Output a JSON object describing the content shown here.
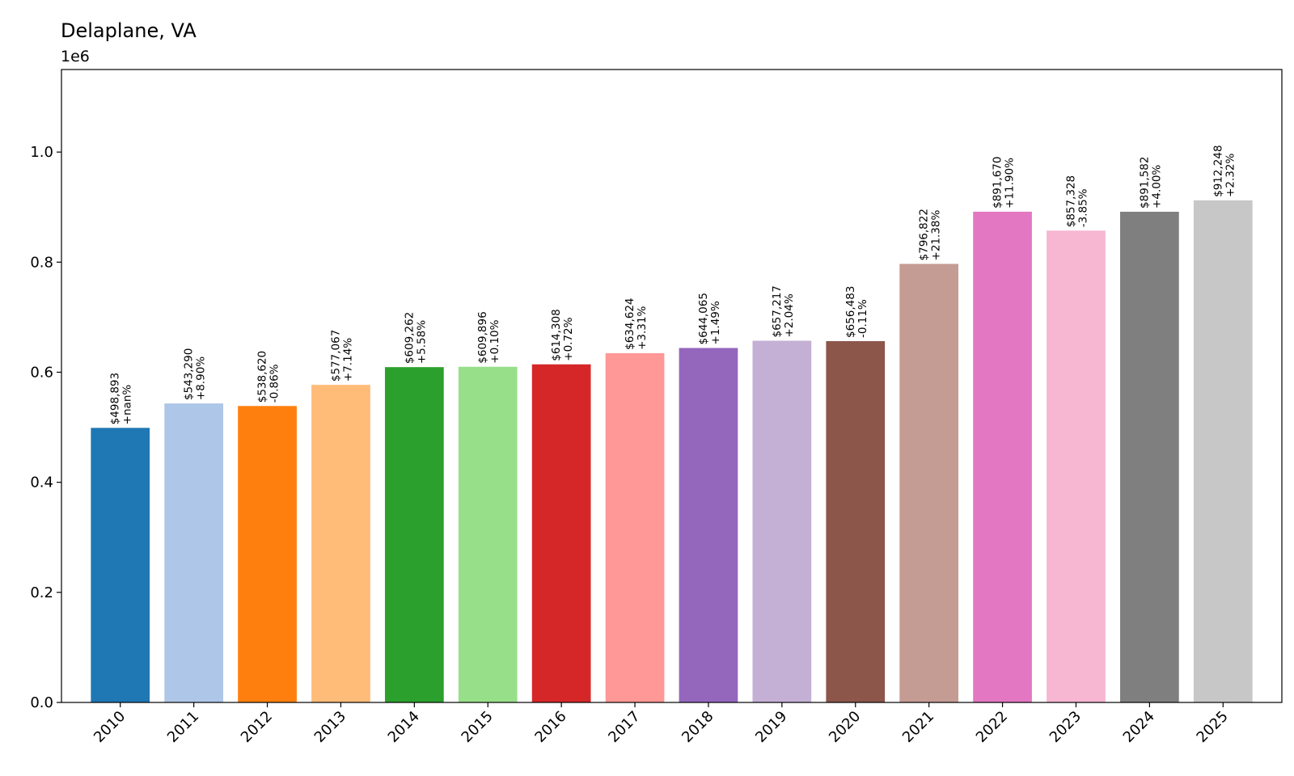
{
  "chart_data": {
    "type": "bar",
    "title": "Delaplane, VA",
    "y_offset_label": "1e6",
    "xlabel": "",
    "ylabel": "",
    "ylim": [
      0,
      1.15
    ],
    "yticks": [
      0.0,
      0.2,
      0.4,
      0.6,
      0.8,
      1.0
    ],
    "ytick_labels": [
      "0.0",
      "0.2",
      "0.4",
      "0.6",
      "0.8",
      "1.0"
    ],
    "grid": false,
    "legend": "none",
    "categories": [
      "2010",
      "2011",
      "2012",
      "2013",
      "2014",
      "2015",
      "2016",
      "2017",
      "2018",
      "2019",
      "2020",
      "2021",
      "2022",
      "2023",
      "2024",
      "2025"
    ],
    "values": [
      498893,
      543290,
      538620,
      577067,
      609262,
      609896,
      614308,
      634624,
      644065,
      657217,
      656483,
      796822,
      891670,
      857328,
      891582,
      912248
    ],
    "value_labels": [
      "$498,893",
      "$543,290",
      "$538,620",
      "$577,067",
      "$609,262",
      "$609,896",
      "$614,308",
      "$634,624",
      "$644,065",
      "$657,217",
      "$656,483",
      "$796,822",
      "$891,670",
      "$857,328",
      "$891,582",
      "$912,248"
    ],
    "change_labels": [
      "+nan%",
      "+8.90%",
      "-0.86%",
      "+7.14%",
      "+5.58%",
      "+0.10%",
      "+0.72%",
      "+3.31%",
      "+1.49%",
      "+2.04%",
      "-0.11%",
      "+21.38%",
      "+11.90%",
      "-3.85%",
      "+4.00%",
      "+2.32%"
    ],
    "colors": [
      "#1f77b4",
      "#aec7e8",
      "#ff7f0e",
      "#ffbb78",
      "#2ca02c",
      "#98df8a",
      "#d62728",
      "#ff9896",
      "#9467bd",
      "#c5b0d5",
      "#8c564b",
      "#c49c94",
      "#e377c2",
      "#f7b6d2",
      "#7f7f7f",
      "#c7c7c7"
    ]
  }
}
